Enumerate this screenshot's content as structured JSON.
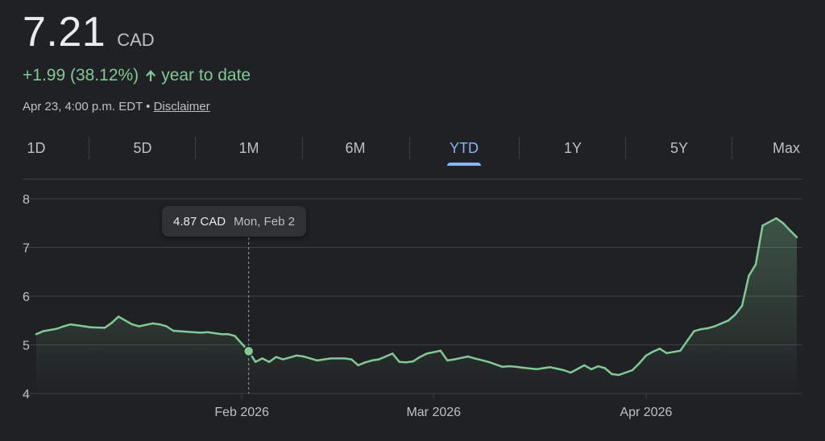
{
  "quote": {
    "price": "7.21",
    "currency": "CAD",
    "change": "+1.99 (38.12%)",
    "change_period": "year to date",
    "timestamp": "Apr 23, 4:00 p.m. EDT",
    "separator": "•",
    "disclaimer": "Disclaimer"
  },
  "colors": {
    "background": "#202124",
    "positive": "#81c995",
    "accent": "#8ab4f8",
    "grid": "#3c4043",
    "text": "#e8eaed",
    "muted": "#bdc1c6"
  },
  "icons": {
    "change_arrow": "arrow-up-icon"
  },
  "tabs": [
    {
      "label": "1D",
      "active": false
    },
    {
      "label": "5D",
      "active": false
    },
    {
      "label": "1M",
      "active": false
    },
    {
      "label": "6M",
      "active": false
    },
    {
      "label": "YTD",
      "active": true
    },
    {
      "label": "1Y",
      "active": false
    },
    {
      "label": "5Y",
      "active": false
    },
    {
      "label": "Max",
      "active": false
    }
  ],
  "tooltip": {
    "value": "4.87 CAD",
    "date": "Mon, Feb 2"
  },
  "chart_data": {
    "type": "area",
    "title": "",
    "xlabel": "",
    "ylabel": "",
    "ylim": [
      4,
      8
    ],
    "y_ticks": [
      "4",
      "5",
      "6",
      "7",
      "8"
    ],
    "x_ticks": [
      {
        "label": "Feb 2026",
        "date": "2026-02-01"
      },
      {
        "label": "Mar 2026",
        "date": "2026-03-01"
      },
      {
        "label": "Apr 2026",
        "date": "2026-04-01"
      }
    ],
    "grid": true,
    "legend": "none",
    "highlight": {
      "date": "2026-02-02",
      "value": 4.87
    },
    "x": [
      "2026-01-02",
      "2026-01-03",
      "2026-01-05",
      "2026-01-06",
      "2026-01-07",
      "2026-01-08",
      "2026-01-09",
      "2026-01-10",
      "2026-01-12",
      "2026-01-13",
      "2026-01-14",
      "2026-01-15",
      "2026-01-16",
      "2026-01-17",
      "2026-01-19",
      "2026-01-20",
      "2026-01-21",
      "2026-01-22",
      "2026-01-23",
      "2026-01-24",
      "2026-01-26",
      "2026-01-27",
      "2026-01-28",
      "2026-01-29",
      "2026-01-30",
      "2026-01-31",
      "2026-02-02",
      "2026-02-03",
      "2026-02-04",
      "2026-02-05",
      "2026-02-06",
      "2026-02-07",
      "2026-02-09",
      "2026-02-10",
      "2026-02-11",
      "2026-02-12",
      "2026-02-13",
      "2026-02-14",
      "2026-02-16",
      "2026-02-17",
      "2026-02-18",
      "2026-02-19",
      "2026-02-20",
      "2026-02-21",
      "2026-02-23",
      "2026-02-24",
      "2026-02-25",
      "2026-02-26",
      "2026-02-27",
      "2026-02-28",
      "2026-03-02",
      "2026-03-03",
      "2026-03-04",
      "2026-03-05",
      "2026-03-06",
      "2026-03-07",
      "2026-03-09",
      "2026-03-10",
      "2026-03-11",
      "2026-03-12",
      "2026-03-13",
      "2026-03-14",
      "2026-03-16",
      "2026-03-17",
      "2026-03-18",
      "2026-03-19",
      "2026-03-20",
      "2026-03-21",
      "2026-03-23",
      "2026-03-24",
      "2026-03-25",
      "2026-03-26",
      "2026-03-27",
      "2026-03-28",
      "2026-03-30",
      "2026-03-31",
      "2026-04-01",
      "2026-04-02",
      "2026-04-03",
      "2026-04-04",
      "2026-04-06",
      "2026-04-07",
      "2026-04-08",
      "2026-04-09",
      "2026-04-10",
      "2026-04-11",
      "2026-04-13",
      "2026-04-14",
      "2026-04-15",
      "2026-04-16",
      "2026-04-17",
      "2026-04-18",
      "2026-04-20",
      "2026-04-21",
      "2026-04-22",
      "2026-04-23"
    ],
    "values": [
      5.22,
      5.28,
      5.33,
      5.38,
      5.42,
      5.4,
      5.38,
      5.36,
      5.35,
      5.45,
      5.58,
      5.5,
      5.42,
      5.38,
      5.44,
      5.42,
      5.38,
      5.29,
      5.28,
      5.27,
      5.25,
      5.26,
      5.24,
      5.22,
      5.22,
      5.18,
      4.87,
      4.65,
      4.72,
      4.65,
      4.75,
      4.7,
      4.78,
      4.76,
      4.72,
      4.68,
      4.7,
      4.72,
      4.72,
      4.7,
      4.58,
      4.64,
      4.68,
      4.7,
      4.82,
      4.65,
      4.64,
      4.66,
      4.75,
      4.82,
      4.88,
      4.68,
      4.7,
      4.73,
      4.76,
      4.72,
      4.65,
      4.6,
      4.55,
      4.56,
      4.55,
      4.53,
      4.5,
      4.52,
      4.54,
      4.51,
      4.48,
      4.43,
      4.58,
      4.5,
      4.56,
      4.52,
      4.4,
      4.38,
      4.48,
      4.62,
      4.78,
      4.86,
      4.92,
      4.83,
      4.88,
      5.08,
      5.28,
      5.32,
      5.34,
      5.38,
      5.5,
      5.62,
      5.8,
      6.42,
      6.65,
      7.45,
      7.6,
      7.5,
      7.35,
      7.21
    ]
  }
}
